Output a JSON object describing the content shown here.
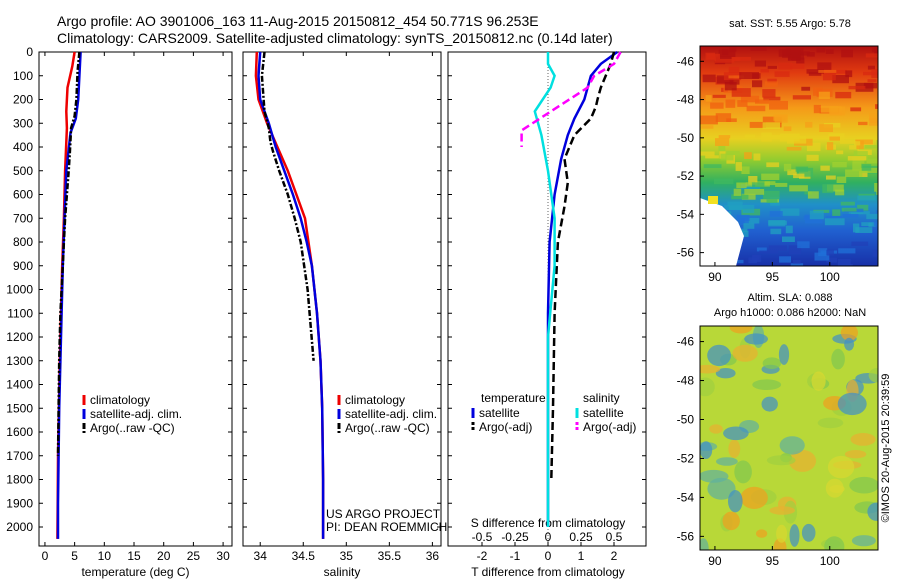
{
  "title": {
    "line1": "Argo profile: AO 3901006_163 11-Aug-2015 20150812_454 50.771S 96.253E",
    "line2": "Climatology: CARS2009. Satellite-adjusted climatology: synTS_20150812.nc (0.14d later)"
  },
  "depth_ticks": [
    "0",
    "100",
    "200",
    "300",
    "400",
    "500",
    "600",
    "700",
    "800",
    "900",
    "1000",
    "1100",
    "1200",
    "1300",
    "1400",
    "1500",
    "1600",
    "1700",
    "1800",
    "1900",
    "2000"
  ],
  "colors": {
    "climatology": "#ee0000",
    "satellite": "#0000dd",
    "argo": "#000000",
    "satellite_s": "#00e0e0",
    "argo_s": "#ff00ff"
  },
  "chart_data": [
    {
      "type": "line",
      "panel": "temperature",
      "xlabel": "temperature (deg C)",
      "xlim": [
        -1,
        31.5
      ],
      "xticks": [
        "0",
        "5",
        "10",
        "15",
        "20",
        "25",
        "30"
      ],
      "ylim": [
        2080,
        0
      ],
      "legend": [
        "climatology",
        "satellite-adj. clim.",
        "Argo(..raw -QC)"
      ],
      "series": [
        {
          "name": "climatology",
          "x": [
            5.0,
            4.6,
            3.8,
            3.6,
            3.7,
            3.4,
            3.2,
            2.9,
            2.7,
            2.5,
            2.35,
            2.2,
            2.15,
            2.1
          ],
          "y": [
            0,
            60,
            150,
            250,
            320,
            500,
            700,
            900,
            1100,
            1300,
            1500,
            1700,
            1900,
            2050
          ]
        },
        {
          "name": "satellite-adj. clim.",
          "x": [
            6.0,
            5.8,
            5.6,
            5.2,
            4.3,
            3.6,
            3.3,
            3.0,
            2.8,
            2.6,
            2.4,
            2.3,
            2.2,
            2.2
          ],
          "y": [
            0,
            100,
            200,
            280,
            340,
            500,
            700,
            900,
            1100,
            1300,
            1500,
            1700,
            1900,
            2050
          ]
        },
        {
          "name": "Argo(..raw -QC)",
          "x": [
            5.8,
            5.5,
            5.3,
            5.0,
            4.4,
            4.2,
            4.0,
            3.7,
            3.4,
            3.2,
            3.0,
            2.8,
            2.6,
            2.4,
            2.3,
            2.2
          ],
          "y": [
            0,
            80,
            200,
            270,
            320,
            420,
            500,
            600,
            700,
            800,
            900,
            1000,
            1100,
            1300,
            1500,
            1700
          ]
        }
      ]
    },
    {
      "type": "line",
      "panel": "salinity",
      "xlabel": "salinity",
      "xlim": [
        33.8,
        36.1
      ],
      "xticks": [
        "34",
        "34.5",
        "35",
        "35.5",
        "36"
      ],
      "ylim": [
        2080,
        0
      ],
      "legend": [
        "climatology",
        "satellite-adj. clim.",
        "Argo(..raw -QC)"
      ],
      "annotation": [
        "US ARGO PROJECT",
        "PI: DEAN ROEMMICH"
      ],
      "series": [
        {
          "name": "climatology",
          "x": [
            33.96,
            33.95,
            33.98,
            34.08,
            34.2,
            34.32,
            34.42,
            34.52,
            34.6,
            34.66,
            34.7,
            34.72,
            34.73,
            34.73
          ],
          "y": [
            0,
            100,
            200,
            300,
            400,
            500,
            600,
            700,
            900,
            1100,
            1300,
            1500,
            1800,
            2050
          ]
        },
        {
          "name": "satellite-adj. clim.",
          "x": [
            34.0,
            33.98,
            34.0,
            34.1,
            34.18,
            34.28,
            34.38,
            34.47,
            34.54,
            34.6,
            34.66,
            34.7,
            34.72,
            34.73,
            34.73
          ],
          "y": [
            0,
            100,
            200,
            300,
            400,
            500,
            600,
            700,
            800,
            900,
            1100,
            1300,
            1500,
            1800,
            2050
          ]
        },
        {
          "name": "Argo(..raw -QC)",
          "x": [
            34.05,
            34.02,
            34.05,
            34.1,
            34.12,
            34.15,
            34.22,
            34.32,
            34.4,
            34.47,
            34.55,
            34.62
          ],
          "y": [
            0,
            100,
            250,
            320,
            380,
            420,
            500,
            600,
            700,
            800,
            1000,
            1300
          ]
        }
      ]
    },
    {
      "type": "line",
      "panel": "difference",
      "xlabel_bottom": "T difference from climatology",
      "xlabel_top": "S difference from climatology",
      "xlim": [
        -2.8,
        2.8
      ],
      "xticks_T": [
        "-2",
        "-1",
        "0",
        "1",
        "2"
      ],
      "xticks_S": [
        "-0.5",
        "-0.25",
        "0",
        "0.25",
        "0.5"
      ],
      "ylim": [
        2080,
        0
      ],
      "legend_left_title": "temperature",
      "legend_right_title": "salinity",
      "legend": [
        "satellite",
        "Argo(-adj)",
        "satellite",
        "Argo(-adj)"
      ],
      "series": [
        {
          "name": "temperature satellite",
          "x": [
            2.1,
            1.6,
            1.3,
            1.1,
            0.8,
            0.6,
            0.4,
            0.2,
            0.05,
            0.0,
            0.0,
            0.0
          ],
          "y": [
            0,
            50,
            100,
            200,
            280,
            350,
            450,
            600,
            800,
            1100,
            1500,
            2000
          ]
        },
        {
          "name": "temperature Argo(-adj)",
          "x": [
            2.0,
            1.9,
            1.6,
            1.5,
            1.45,
            1.3,
            0.8,
            0.5,
            0.6,
            0.5,
            0.3,
            0.2,
            0.15,
            0.1
          ],
          "y": [
            0,
            50,
            150,
            200,
            230,
            280,
            350,
            450,
            550,
            650,
            800,
            1100,
            1500,
            1800
          ]
        },
        {
          "name": "salinity satellite",
          "x": [
            0.0,
            0.0,
            0.05,
            0.02,
            -0.1,
            -0.05,
            0.0,
            0.05,
            0.05,
            0.0,
            0.0,
            0.0
          ],
          "y": [
            0,
            50,
            100,
            150,
            250,
            350,
            500,
            700,
            900,
            1200,
            1600,
            2000
          ]
        },
        {
          "name": "salinity Argo(-adj)",
          "x": [
            0.55,
            0.5,
            0.35,
            0.3,
            -0.2,
            -0.2
          ],
          "y": [
            0,
            50,
            100,
            150,
            330,
            400
          ]
        }
      ]
    },
    {
      "type": "heatmap",
      "panel": "sst_map",
      "title": "sat. SST: 5.55 Argo: 5.78",
      "xticks": [
        "90",
        "95",
        "100"
      ],
      "yticks": [
        "-46",
        "-48",
        "-50",
        "-52",
        "-54",
        "-56"
      ]
    },
    {
      "type": "heatmap",
      "panel": "sla_map",
      "title": [
        "Altim. SLA: 0.088",
        "Argo h1000: 0.086 h2000: NaN"
      ],
      "xticks": [
        "90",
        "95",
        "100"
      ],
      "yticks": [
        "-46",
        "-48",
        "-50",
        "-52",
        "-54",
        "-56"
      ]
    }
  ],
  "credit": "©IMOS 20-Aug-2015 20:39:59"
}
